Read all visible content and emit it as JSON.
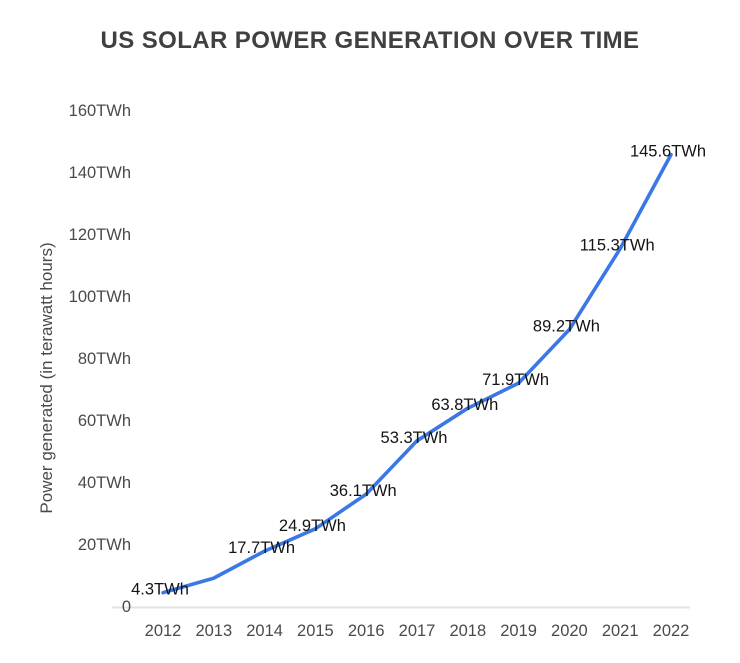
{
  "title": "US SOLAR POWER GENERATION OVER TIME",
  "y_axis_title": "Power generated (in terawatt hours)",
  "colors": {
    "line": "#3B78E7",
    "title_text": "#404040",
    "tick_text": "#4A4A4A",
    "point_label_text": "#141414",
    "baseline": "#E3E3E3",
    "background": "#FFFFFF"
  },
  "chart_data": {
    "type": "line",
    "title": "US SOLAR POWER GENERATION OVER TIME",
    "xlabel": "",
    "ylabel": "Power generated (in terawatt hours)",
    "x": [
      2012,
      2013,
      2014,
      2015,
      2016,
      2017,
      2018,
      2019,
      2020,
      2021,
      2022
    ],
    "values": [
      4.3,
      9.0,
      17.7,
      24.9,
      36.1,
      53.3,
      63.8,
      71.9,
      89.2,
      115.3,
      145.6
    ],
    "point_labels": [
      "4.3TWh",
      "",
      "17.7TWh",
      "24.9TWh",
      "36.1TWh",
      "53.3TWh",
      "63.8TWh",
      "71.9TWh",
      "89.2TWh",
      "115.3TWh",
      "145.6TWh"
    ],
    "yticks": [
      {
        "value": 0,
        "label": "0"
      },
      {
        "value": 20,
        "label": "20TWh"
      },
      {
        "value": 40,
        "label": "40TWh"
      },
      {
        "value": 60,
        "label": "60TWh"
      },
      {
        "value": 80,
        "label": "80TWh"
      },
      {
        "value": 100,
        "label": "100TWh"
      },
      {
        "value": 120,
        "label": "120TWh"
      },
      {
        "value": 140,
        "label": "140TWh"
      },
      {
        "value": 160,
        "label": "160TWh"
      }
    ],
    "ylim": [
      0,
      160
    ],
    "grid": false,
    "legend": false,
    "units": "TWh"
  }
}
